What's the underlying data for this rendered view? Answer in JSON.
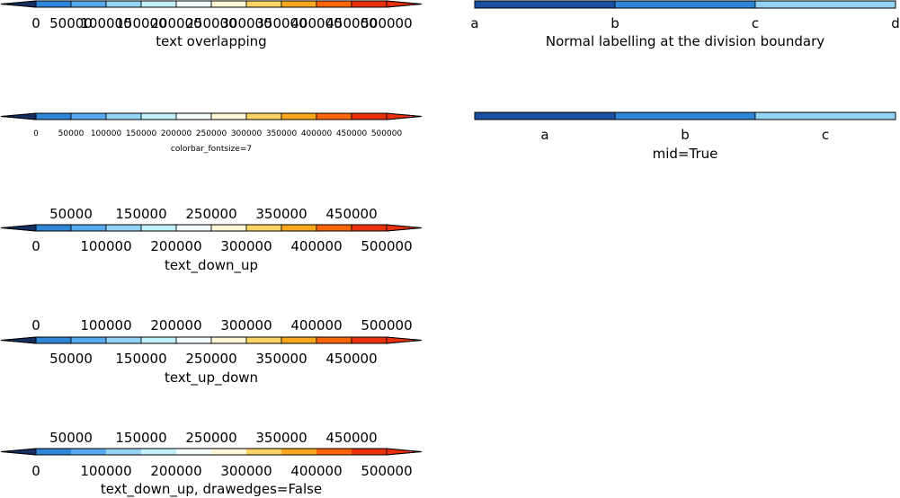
{
  "palette": [
    "#1b4fa0",
    "#2f85d8",
    "#57aaef",
    "#93d3f4",
    "#c3f1fb",
    "#f2fdfe",
    "#fff6d6",
    "#fdd464",
    "#fba81e",
    "#fc6608",
    "#e8300d"
  ],
  "extend_colors": {
    "min": "#142f60",
    "max": "#ea3b0e"
  },
  "chart_data": [
    {
      "type": "colorbar",
      "levels": [
        0,
        50000,
        100000,
        150000,
        200000,
        250000,
        300000,
        350000,
        400000,
        450000,
        500000
      ],
      "extend": "both",
      "drawedges": true,
      "label_mode": "overlapping",
      "labels_below": [
        "0",
        "50000",
        "100000",
        "150000",
        "200000",
        "250000",
        "300000",
        "350000",
        "400000",
        "450000",
        "500000"
      ],
      "labels_above": [],
      "title": "text overlapping"
    },
    {
      "type": "colorbar",
      "levels": [
        0,
        50000,
        100000,
        150000,
        200000,
        250000,
        300000,
        350000,
        400000,
        450000,
        500000
      ],
      "extend": "both",
      "drawedges": true,
      "label_mode": "small",
      "labels_below": [
        "0",
        "50000",
        "100000",
        "150000",
        "200000",
        "250000",
        "300000",
        "350000",
        "400000",
        "450000",
        "500000"
      ],
      "labels_above": [],
      "title": "colorbar_fontsize=7"
    },
    {
      "type": "colorbar",
      "levels": [
        0,
        50000,
        100000,
        150000,
        200000,
        250000,
        300000,
        350000,
        400000,
        450000,
        500000
      ],
      "extend": "both",
      "drawedges": true,
      "label_mode": "down_up",
      "labels_below": [
        "0",
        "100000",
        "200000",
        "300000",
        "400000",
        "500000"
      ],
      "labels_above": [
        "50000",
        "150000",
        "250000",
        "350000",
        "450000"
      ],
      "title": "text_down_up"
    },
    {
      "type": "colorbar",
      "levels": [
        0,
        50000,
        100000,
        150000,
        200000,
        250000,
        300000,
        350000,
        400000,
        450000,
        500000
      ],
      "extend": "both",
      "drawedges": true,
      "label_mode": "up_down",
      "labels_below": [
        "50000",
        "150000",
        "250000",
        "350000",
        "450000"
      ],
      "labels_above": [
        "0",
        "100000",
        "200000",
        "300000",
        "400000",
        "500000"
      ],
      "title": "text_up_down"
    },
    {
      "type": "colorbar",
      "levels": [
        0,
        50000,
        100000,
        150000,
        200000,
        250000,
        300000,
        350000,
        400000,
        450000,
        500000
      ],
      "extend": "both",
      "drawedges": false,
      "label_mode": "down_up",
      "labels_below": [
        "0",
        "100000",
        "200000",
        "300000",
        "400000",
        "500000"
      ],
      "labels_above": [
        "50000",
        "150000",
        "250000",
        "350000",
        "450000"
      ],
      "title": "text_down_up, drawedges=False"
    },
    {
      "type": "colorbar",
      "categories": [
        "a",
        "b",
        "c",
        "d"
      ],
      "segments": 3,
      "extend": "neither",
      "drawedges": true,
      "label_mode": "boundary",
      "labels_below": [
        "a",
        "b",
        "c",
        "d"
      ],
      "labels_above": [],
      "title": "Normal labelling at the division boundary"
    },
    {
      "type": "colorbar",
      "categories": [
        "a",
        "b",
        "c"
      ],
      "segments": 3,
      "extend": "neither",
      "drawedges": true,
      "label_mode": "mid",
      "labels_below": [
        "a",
        "b",
        "c"
      ],
      "labels_above": [],
      "title": "mid=True"
    }
  ]
}
